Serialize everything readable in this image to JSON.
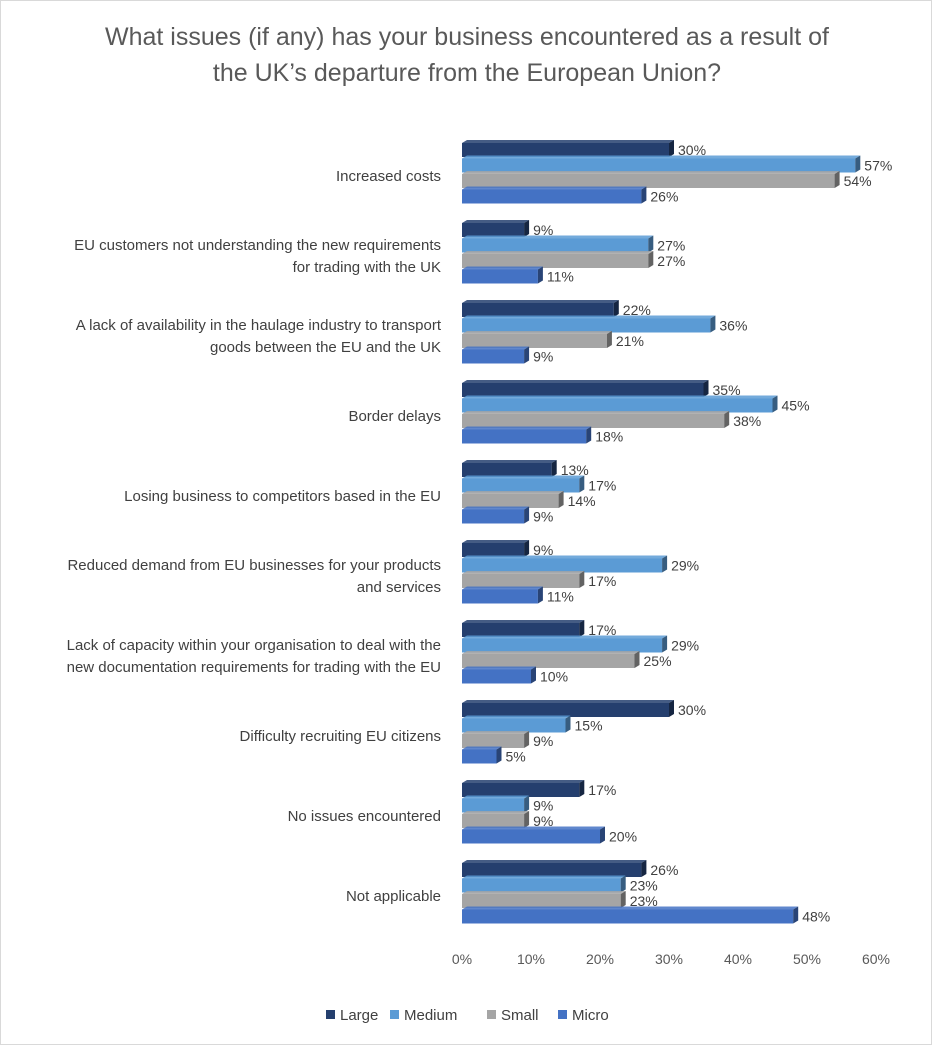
{
  "chart_data": {
    "type": "bar",
    "orientation": "horizontal",
    "title_lines": [
      "What issues (if any) has your business encountered as a result of",
      "the UK’s departure from the European Union?"
    ],
    "categories": [
      [
        "Increased costs"
      ],
      [
        "EU customers not understanding the new requirements",
        "for trading with the UK"
      ],
      [
        "A lack of availability in the haulage industry to transport",
        "goods between the EU and the UK"
      ],
      [
        "Border delays"
      ],
      [
        "Losing business to competitors based in the EU"
      ],
      [
        "Reduced demand from EU businesses for your products",
        "and services"
      ],
      [
        "Lack of capacity within your organisation to deal with the",
        "new documentation requirements for trading with the EU"
      ],
      [
        "Difficulty recruiting EU citizens"
      ],
      [
        "No issues encountered"
      ],
      [
        "Not applicable"
      ]
    ],
    "series": [
      {
        "name": "Large",
        "color": "#253f6e",
        "values": [
          30,
          9,
          22,
          35,
          13,
          9,
          17,
          30,
          17,
          26
        ]
      },
      {
        "name": "Medium",
        "color": "#5b9bd5",
        "values": [
          57,
          27,
          36,
          45,
          17,
          29,
          29,
          15,
          9,
          23
        ]
      },
      {
        "name": "Small",
        "color": "#a5a5a5",
        "values": [
          54,
          27,
          21,
          38,
          14,
          17,
          25,
          9,
          9,
          23
        ]
      },
      {
        "name": "Micro",
        "color": "#4472c4",
        "values": [
          26,
          11,
          9,
          18,
          9,
          11,
          10,
          5,
          20,
          48
        ]
      }
    ],
    "value_suffix": "%",
    "xlim": [
      0,
      60
    ],
    "x_ticks": [
      "0%",
      "10%",
      "20%",
      "30%",
      "40%",
      "50%",
      "60%"
    ],
    "grid": false,
    "legend_position": "bottom",
    "legend_marker_colors": [
      "#253f6e",
      "#5b9bd5",
      "#a5a5a5",
      "#4472c4"
    ]
  }
}
